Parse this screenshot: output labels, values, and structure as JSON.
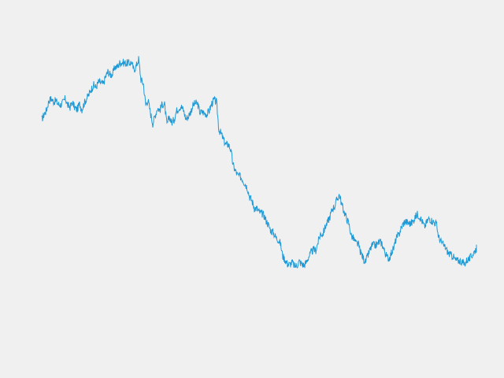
{
  "chart_data": {
    "type": "line",
    "title": "",
    "xlabel": "",
    "ylabel": "",
    "grid": false,
    "axes_visible": false,
    "xlim": [
      0,
      552
    ],
    "ylim": [
      0,
      350
    ],
    "colors": {
      "background": "#f0f0f0",
      "line": "#1f9ad6"
    },
    "series": [
      {
        "x": [
          0,
          3,
          6,
          9,
          12,
          15,
          18,
          21,
          24,
          27,
          30,
          33,
          36,
          39,
          42,
          45,
          48,
          51,
          54,
          57,
          60,
          63,
          66,
          69,
          72,
          75,
          78,
          81,
          84,
          87,
          90,
          93,
          96,
          99,
          102,
          105,
          108,
          111,
          114,
          117,
          120,
          123,
          126,
          129,
          132,
          135,
          138,
          141,
          144,
          147,
          150,
          153,
          156,
          159,
          162,
          165,
          168,
          171,
          174,
          177,
          180,
          183,
          186,
          189,
          192,
          195,
          198,
          201,
          204,
          207,
          210,
          213,
          216,
          219,
          222,
          225,
          228,
          231,
          234,
          237,
          240,
          243,
          246,
          249,
          252,
          255,
          258,
          261,
          264,
          267,
          270,
          273,
          276,
          279,
          282,
          285,
          288,
          291,
          294,
          297,
          300,
          303,
          306,
          309,
          312,
          315,
          318,
          321,
          324,
          327,
          330,
          333,
          336,
          339,
          342,
          345,
          348,
          351,
          354,
          357,
          360,
          363,
          366,
          369,
          372,
          375,
          378,
          381,
          384,
          387,
          390,
          393,
          396,
          399,
          402,
          405,
          408,
          411,
          414,
          417,
          420,
          423,
          426,
          429,
          432,
          435,
          438,
          441,
          444,
          447,
          450,
          453,
          456,
          459,
          462,
          465,
          468,
          471,
          474,
          477,
          480,
          483,
          486,
          489,
          492,
          495,
          498,
          501,
          504,
          507,
          510,
          513,
          516,
          519,
          522,
          525,
          528,
          531,
          534,
          537,
          540,
          543,
          546,
          549,
          552
        ],
        "values": [
          273,
          280,
          285,
          297,
          300,
          296,
          297,
          293,
          292,
          295,
          300,
          291,
          289,
          295,
          288,
          286,
          293,
          286,
          294,
          300,
          305,
          312,
          317,
          314,
          321,
          320,
          318,
          327,
          334,
          330,
          331,
          340,
          340,
          345,
          346,
          345,
          345,
          345,
          346,
          336,
          341,
          350,
          324,
          319,
          292,
          298,
          282,
          268,
          278,
          288,
          285,
          293,
          292,
          266,
          277,
          269,
          273,
          284,
          288,
          290,
          285,
          274,
          277,
          283,
          291,
          294,
          293,
          282,
          283,
          281,
          280,
          285,
          294,
          298,
          295,
          260,
          255,
          247,
          241,
          242,
          235,
          215,
          208,
          202,
          201,
          197,
          192,
          187,
          175,
          170,
          161,
          160,
          156,
          154,
          152,
          145,
          139,
          132,
          130,
          124,
          121,
          116,
          100,
          95,
          90,
          89,
          92,
          87,
          88,
          93,
          90,
          88,
          92,
          99,
          104,
          108,
          107,
          118,
          128,
          128,
          137,
          143,
          150,
          160,
          163,
          172,
          178,
          165,
          156,
          148,
          141,
          126,
          122,
          116,
          115,
          104,
          98,
          92,
          100,
          108,
          114,
          113,
          115,
          118,
          116,
          107,
          99,
          97,
          104,
          110,
          122,
          126,
          134,
          141,
          144,
          142,
          141,
          143,
          149,
          153,
          150,
          144,
          137,
          143,
          148,
          145,
          143,
          141,
          124,
          118,
          114,
          110,
          104,
          101,
          100,
          95,
          94,
          94,
          92,
          90,
          95,
          96,
          100,
          105,
          110
        ],
        "style": "line"
      }
    ]
  }
}
